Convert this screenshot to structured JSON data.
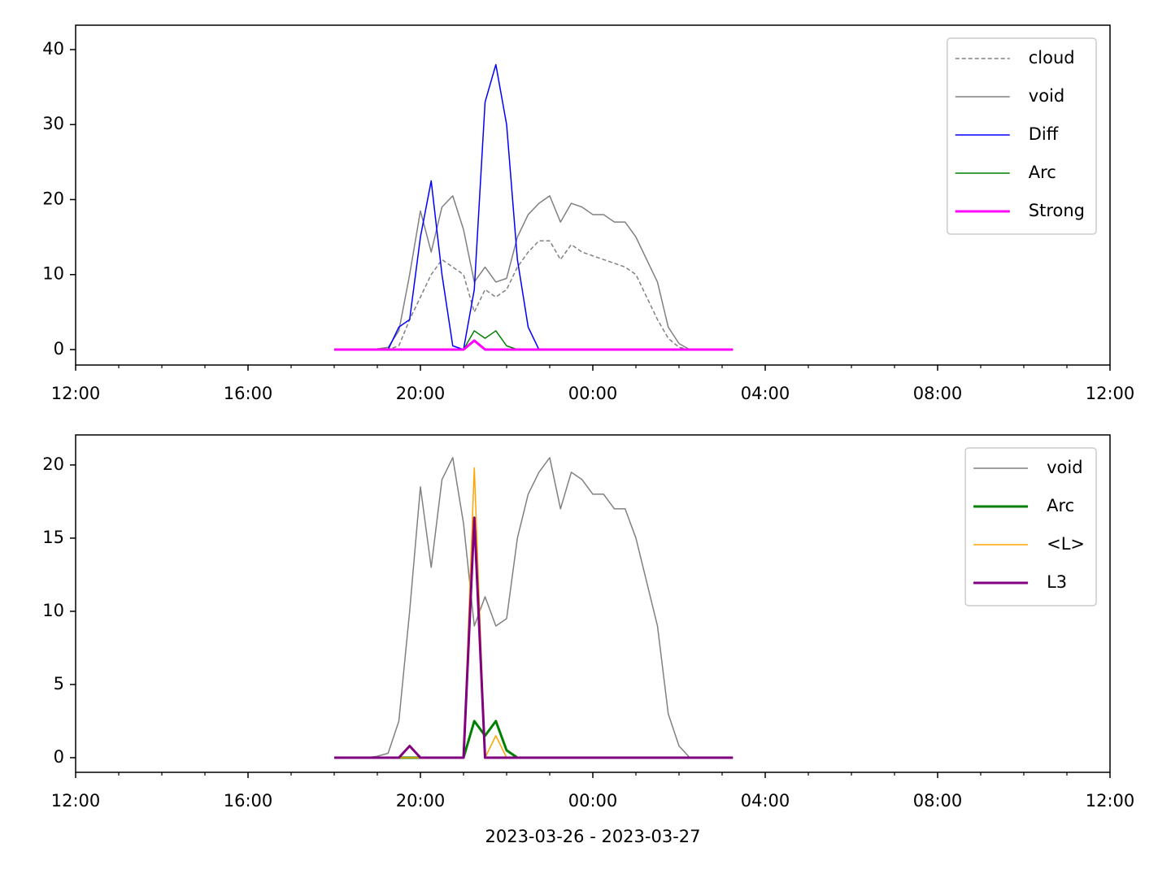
{
  "chart_data": [
    {
      "type": "line",
      "x": [
        18,
        18.25,
        18.5,
        18.75,
        19,
        19.25,
        19.5,
        19.75,
        20,
        20.25,
        20.5,
        20.75,
        21,
        21.25,
        21.5,
        21.75,
        22,
        22.25,
        22.5,
        22.75,
        23,
        23.25,
        23.5,
        23.75,
        24,
        24.25,
        24.5,
        24.75,
        25,
        25.25,
        25.5,
        25.75,
        26,
        26.25,
        26.5,
        26.75,
        27,
        27.25
      ],
      "xlim": [
        12,
        36
      ],
      "xticks": [
        {
          "value": 12,
          "label": "12:00"
        },
        {
          "value": 16,
          "label": "16:00"
        },
        {
          "value": 20,
          "label": "20:00"
        },
        {
          "value": 24,
          "label": "00:00"
        },
        {
          "value": 28,
          "label": "04:00"
        },
        {
          "value": 32,
          "label": "08:00"
        },
        {
          "value": 36,
          "label": "12:00"
        }
      ],
      "xminorticks": [
        13,
        14,
        15,
        17,
        18,
        19,
        21,
        22,
        23,
        25,
        26,
        27,
        29,
        30,
        31,
        33,
        34,
        35
      ],
      "ylim": [
        -2.06,
        43.25
      ],
      "yticks": [
        0,
        10,
        20,
        30,
        40
      ],
      "legend": "upper right",
      "series": [
        {
          "name": "cloud",
          "color": "#808080",
          "linestyle": "dashed",
          "linewidth": 1.5,
          "values": [
            0,
            0,
            0,
            0,
            0,
            0,
            0.5,
            4,
            7,
            10,
            12,
            11,
            10,
            5,
            8,
            7,
            8,
            11,
            13,
            14.5,
            14.5,
            12,
            14,
            13,
            12.5,
            12,
            11.5,
            11,
            10,
            7,
            4,
            1.5,
            0.3,
            0,
            0,
            0,
            0,
            0
          ]
        },
        {
          "name": "void",
          "color": "#808080",
          "linestyle": "solid",
          "linewidth": 1.5,
          "values": [
            0,
            0,
            0,
            0,
            0.1,
            0.3,
            2.5,
            10,
            18.5,
            13,
            19,
            20.5,
            16,
            9,
            11,
            9,
            9.5,
            15,
            18,
            19.5,
            20.5,
            17,
            19.5,
            19,
            18,
            18,
            17,
            17,
            15,
            12,
            9,
            3,
            0.8,
            0,
            0,
            0,
            0,
            0
          ]
        },
        {
          "name": "Diff",
          "color": "#0000ff",
          "linestyle": "solid",
          "linewidth": 1.5,
          "values": [
            0,
            0,
            0,
            0,
            0,
            0,
            3,
            4,
            15,
            22.5,
            10,
            0.5,
            0,
            8,
            33,
            38,
            30,
            12,
            3,
            0,
            0,
            0,
            0,
            0,
            0,
            0,
            0,
            0,
            0,
            0,
            0,
            0,
            0,
            0,
            0,
            0,
            0,
            0
          ]
        },
        {
          "name": "Arc",
          "color": "#008000",
          "linestyle": "solid",
          "linewidth": 1.5,
          "values": [
            0,
            0,
            0,
            0,
            0,
            0,
            0,
            0,
            0,
            0,
            0,
            0,
            0,
            2.5,
            1.5,
            2.5,
            0.5,
            0,
            0,
            0,
            0,
            0,
            0,
            0,
            0,
            0,
            0,
            0,
            0,
            0,
            0,
            0,
            0,
            0,
            0,
            0,
            0,
            0
          ]
        },
        {
          "name": "Strong",
          "color": "#ff00ff",
          "linestyle": "solid",
          "linewidth": 3,
          "values": [
            0,
            0,
            0,
            0,
            0,
            0,
            0,
            0,
            0,
            0,
            0,
            0,
            0,
            1.2,
            0,
            0,
            0,
            0,
            0,
            0,
            0,
            0,
            0,
            0,
            0,
            0,
            0,
            0,
            0,
            0,
            0,
            0,
            0,
            0,
            0,
            0,
            0,
            0
          ]
        }
      ]
    },
    {
      "type": "line",
      "xlabel": "2023-03-26 - 2023-03-27",
      "x": [
        18,
        18.25,
        18.5,
        18.75,
        19,
        19.25,
        19.5,
        19.75,
        20,
        20.25,
        20.5,
        20.75,
        21,
        21.25,
        21.5,
        21.75,
        22,
        22.25,
        22.5,
        22.75,
        23,
        23.25,
        23.5,
        23.75,
        24,
        24.25,
        24.5,
        24.75,
        25,
        25.25,
        25.5,
        25.75,
        26,
        26.25,
        26.5,
        26.75,
        27,
        27.25
      ],
      "xlim": [
        12,
        36
      ],
      "xticks": [
        {
          "value": 12,
          "label": "12:00"
        },
        {
          "value": 16,
          "label": "16:00"
        },
        {
          "value": 20,
          "label": "20:00"
        },
        {
          "value": 24,
          "label": "00:00"
        },
        {
          "value": 28,
          "label": "04:00"
        },
        {
          "value": 32,
          "label": "08:00"
        },
        {
          "value": 36,
          "label": "12:00"
        }
      ],
      "xminorticks": [
        13,
        14,
        15,
        17,
        18,
        19,
        21,
        22,
        23,
        25,
        26,
        27,
        29,
        30,
        31,
        33,
        34,
        35
      ],
      "ylim": [
        -1,
        22.05
      ],
      "yticks": [
        0,
        5,
        10,
        15,
        20
      ],
      "legend": "upper right",
      "series": [
        {
          "name": "void",
          "color": "#808080",
          "linestyle": "solid",
          "linewidth": 1.5,
          "values": [
            0,
            0,
            0,
            0,
            0.1,
            0.3,
            2.5,
            10,
            18.5,
            13,
            19,
            20.5,
            16,
            9,
            11,
            9,
            9.5,
            15,
            18,
            19.5,
            20.5,
            17,
            19.5,
            19,
            18,
            18,
            17,
            17,
            15,
            12,
            9,
            3,
            0.8,
            0,
            0,
            0,
            0,
            0
          ]
        },
        {
          "name": "Arc",
          "color": "#008000",
          "linestyle": "solid",
          "linewidth": 3,
          "values": [
            0,
            0,
            0,
            0,
            0,
            0,
            0,
            0,
            0,
            0,
            0,
            0,
            0,
            2.5,
            1.5,
            2.5,
            0.5,
            0,
            0,
            0,
            0,
            0,
            0,
            0,
            0,
            0,
            0,
            0,
            0,
            0,
            0,
            0,
            0,
            0,
            0,
            0,
            0,
            0
          ]
        },
        {
          "name": "<L>",
          "color": "#ffa500",
          "linestyle": "solid",
          "linewidth": 1.5,
          "values": [
            0,
            0,
            0,
            0,
            0,
            0,
            0,
            0,
            0,
            0,
            0,
            0,
            0,
            19.8,
            0,
            1.5,
            0,
            0,
            0,
            0,
            0,
            0,
            0,
            0,
            0,
            0,
            0,
            0,
            0,
            0,
            0,
            0,
            0,
            0,
            0,
            0,
            0,
            0
          ]
        },
        {
          "name": "L3",
          "color": "#800080",
          "linestyle": "solid",
          "linewidth": 3,
          "values": [
            0,
            0,
            0,
            0,
            0,
            0,
            0,
            0.8,
            0,
            0,
            0,
            0,
            0,
            16.4,
            0,
            0,
            0,
            0,
            0,
            0,
            0,
            0,
            0,
            0,
            0,
            0,
            0,
            0,
            0,
            0,
            0,
            0,
            0,
            0,
            0,
            0,
            0,
            0
          ]
        }
      ]
    }
  ]
}
